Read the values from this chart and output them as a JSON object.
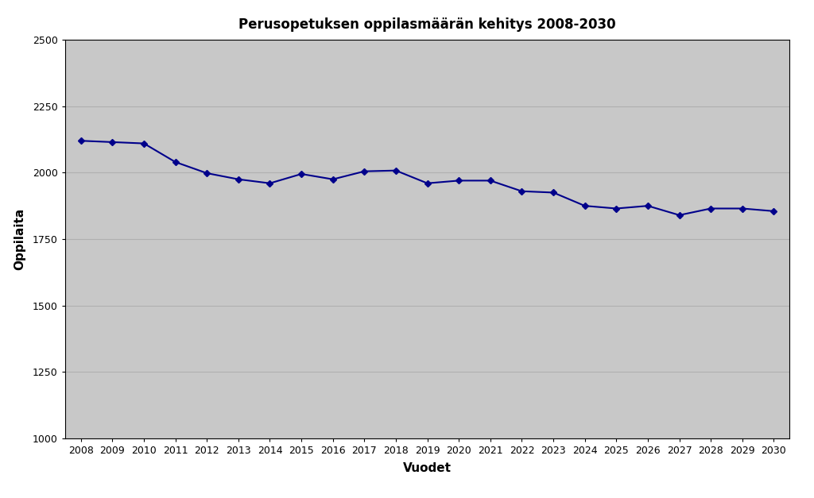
{
  "title": "Perusopetuksen oppilasmäärän kehitys 2008-2030",
  "xlabel": "Vuodet",
  "ylabel": "Oppilaita",
  "years": [
    2008,
    2009,
    2010,
    2011,
    2012,
    2013,
    2014,
    2015,
    2016,
    2017,
    2018,
    2019,
    2020,
    2021,
    2022,
    2023,
    2024,
    2025,
    2026,
    2027,
    2028,
    2029,
    2030
  ],
  "values": [
    2120,
    2115,
    2110,
    2040,
    1998,
    1975,
    1960,
    1995,
    1975,
    2005,
    2008,
    1960,
    1970,
    1970,
    1930,
    1925,
    1875,
    1865,
    1875,
    1840,
    1865,
    1865,
    1855
  ],
  "line_color": "#00008B",
  "marker": "D",
  "marker_size": 4,
  "ylim": [
    1000,
    2500
  ],
  "yticks": [
    1000,
    1250,
    1500,
    1750,
    2000,
    2250,
    2500
  ],
  "plot_background_color": "#C8C8C8",
  "figure_background": "#FFFFFF",
  "grid_color": "#B0B0B0",
  "title_fontsize": 12,
  "axis_label_fontsize": 11,
  "tick_fontsize": 9
}
